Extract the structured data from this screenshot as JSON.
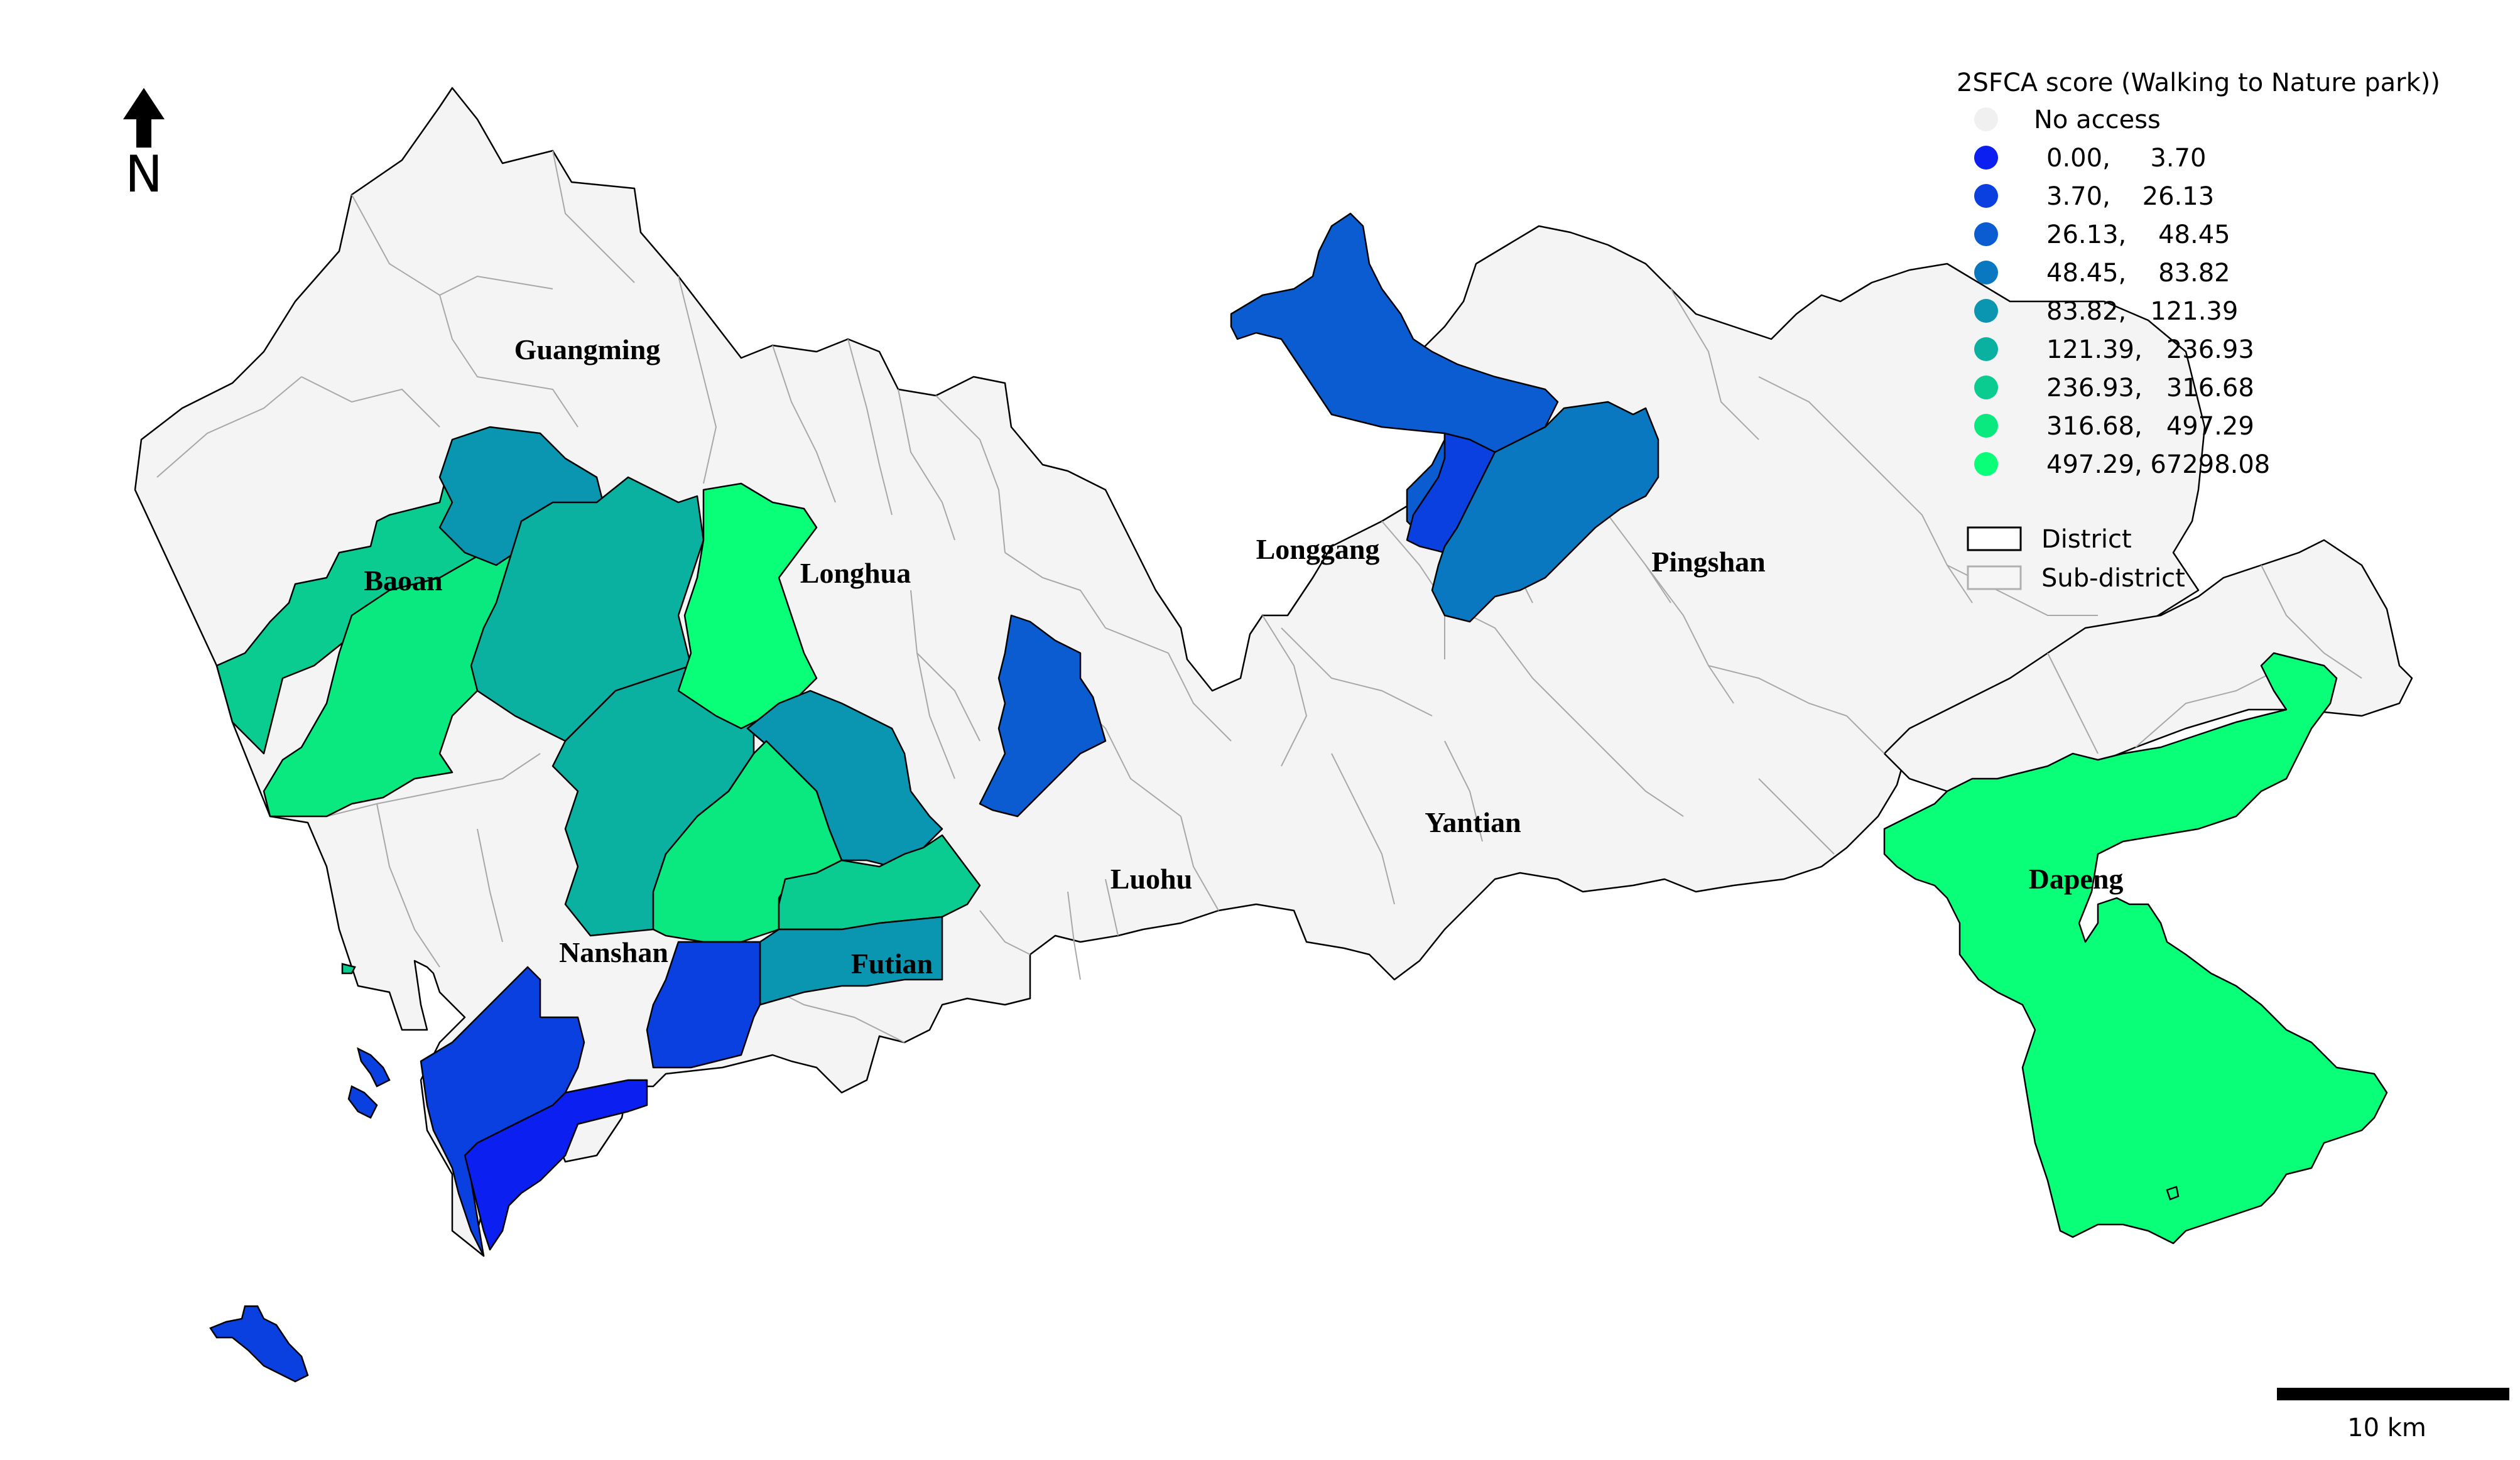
{
  "map": {
    "north_label": "N",
    "scale_label": "10 km",
    "districts": [
      {
        "id": "guangming",
        "label": "Guangming"
      },
      {
        "id": "baoan",
        "label": "Baoan"
      },
      {
        "id": "longhua",
        "label": "Longhua"
      },
      {
        "id": "longgang",
        "label": "Longgang"
      },
      {
        "id": "pingshan",
        "label": "Pingshan"
      },
      {
        "id": "yantian",
        "label": "Yantian"
      },
      {
        "id": "luohu",
        "label": "Luohu"
      },
      {
        "id": "nanshan",
        "label": "Nanshan"
      },
      {
        "id": "futian",
        "label": "Futian"
      },
      {
        "id": "dapeng",
        "label": "Dapeng"
      }
    ]
  },
  "legend": {
    "title": "2SFCA score (Walking to Nature park))",
    "no_access": {
      "label": "No access",
      "color": "#f0f0f0"
    },
    "classes": [
      {
        "label": "0.00,     3.70",
        "color": "#0a1ff0"
      },
      {
        "label": "3.70,    26.13",
        "color": "#0a3fe0"
      },
      {
        "label": "26.13,    48.45",
        "color": "#0a5cd0"
      },
      {
        "label": "48.45,    83.82",
        "color": "#0a78c0"
      },
      {
        "label": "83.82,   121.39",
        "color": "#0a95b0"
      },
      {
        "label": "121.39,   236.93",
        "color": "#0ab0a0"
      },
      {
        "label": "236.93,   316.68",
        "color": "#0acc90"
      },
      {
        "label": "316.68,   497.29",
        "color": "#0ae880"
      },
      {
        "label": "497.29, 67298.08",
        "color": "#0aff78"
      }
    ],
    "district_label": "District",
    "subdistrict_label": "Sub-district"
  }
}
